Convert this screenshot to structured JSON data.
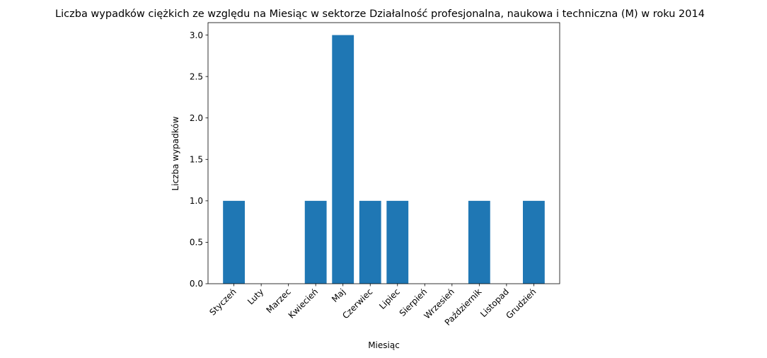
{
  "chart_data": {
    "type": "bar",
    "title": "Liczba wypadków ciężkich ze względu na Miesiąc w sektorze Działalność profesjonalna, naukowa i techniczna  (M) w roku 2014",
    "xlabel": "Miesiąc",
    "ylabel": "Liczba wypadków",
    "categories": [
      "Styczeń",
      "Luty",
      "Marzec",
      "Kwiecień",
      "Maj",
      "Czerwiec",
      "Lipiec",
      "Sierpień",
      "Wrzesień",
      "Październik",
      "Listopad",
      "Grudzień"
    ],
    "values": [
      1,
      0,
      0,
      1,
      3,
      1,
      1,
      0,
      0,
      1,
      0,
      1
    ],
    "ylim": [
      0,
      3.15
    ],
    "yticks": [
      0.0,
      0.5,
      1.0,
      1.5,
      2.0,
      2.5,
      3.0
    ],
    "ytick_labels": [
      "0.0",
      "0.5",
      "1.0",
      "1.5",
      "2.0",
      "2.5",
      "3.0"
    ],
    "bar_color": "#1f77b4",
    "grid": false,
    "legend": "none"
  }
}
